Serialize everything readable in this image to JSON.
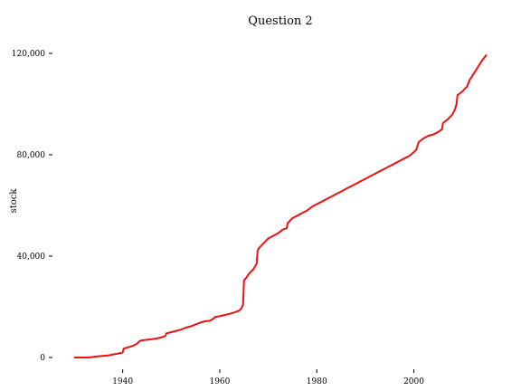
{
  "chart_data": {
    "type": "line",
    "title": "Question 2",
    "xlabel": "",
    "ylabel": "stock",
    "xlim": [
      1930,
      2015
    ],
    "ylim": [
      0,
      120000
    ],
    "x_ticks": [
      1940,
      1960,
      1980,
      2000
    ],
    "x_tick_labels": [
      "1940",
      "1960",
      "1980",
      "2000"
    ],
    "y_ticks": [
      0,
      40000,
      80000,
      120000
    ],
    "y_tick_labels": [
      "0",
      "40,000",
      "80,000",
      "120,000"
    ],
    "grid": false,
    "legend": "none",
    "series": [
      {
        "color": "#ee1111",
        "x": [
          1930,
          1933,
          1935,
          1937,
          1938,
          1939,
          1940,
          1940.2,
          1941,
          1942,
          1943,
          1943.5,
          1944,
          1945,
          1946,
          1947,
          1948,
          1948.8,
          1949,
          1950,
          1951,
          1952,
          1953,
          1954,
          1955,
          1956,
          1957,
          1958,
          1958.8,
          1959,
          1960,
          1961,
          1962,
          1963,
          1964,
          1964.5,
          1964.8,
          1965,
          1965.5,
          1966,
          1967,
          1967.6,
          1967.8,
          1968,
          1969,
          1970,
          1971,
          1972,
          1973,
          1973.8,
          1974,
          1975,
          1976,
          1977,
          1978,
          1979,
          1980,
          1981,
          1982,
          1983,
          1984,
          1985,
          1986,
          1987,
          1988,
          1989,
          1990,
          1991,
          1992,
          1993,
          1994,
          1995,
          1996,
          1997,
          1998,
          1999,
          2000,
          2000.5,
          2001,
          2002,
          2003,
          2004,
          2005,
          2005.8,
          2006,
          2007,
          2008,
          2008.5,
          2008.8,
          2009,
          2010,
          2011,
          2011.5,
          2012,
          2013,
          2014,
          2015
        ],
        "values": [
          0,
          0,
          500,
          800,
          1200,
          1500,
          2000,
          3500,
          4000,
          4500,
          5500,
          6500,
          6800,
          7000,
          7200,
          7500,
          8000,
          8500,
          9500,
          10000,
          10500,
          11000,
          11800,
          12300,
          13000,
          13800,
          14300,
          14500,
          15500,
          16000,
          16300,
          16800,
          17200,
          17800,
          18500,
          19500,
          21000,
          30500,
          31500,
          33000,
          35000,
          37000,
          42000,
          43000,
          45000,
          47000,
          48000,
          49000,
          50500,
          51000,
          53000,
          55000,
          56000,
          57000,
          58000,
          59500,
          60500,
          61500,
          62500,
          63500,
          64500,
          65500,
          66500,
          67500,
          68500,
          69500,
          70500,
          71500,
          72500,
          73500,
          74500,
          75500,
          76500,
          77500,
          78500,
          79500,
          81000,
          82000,
          85000,
          86500,
          87500,
          88000,
          89000,
          90000,
          92500,
          94000,
          96000,
          98000,
          100000,
          103500,
          105000,
          107000,
          109500,
          111000,
          114000,
          117000,
          119500
        ]
      }
    ]
  }
}
